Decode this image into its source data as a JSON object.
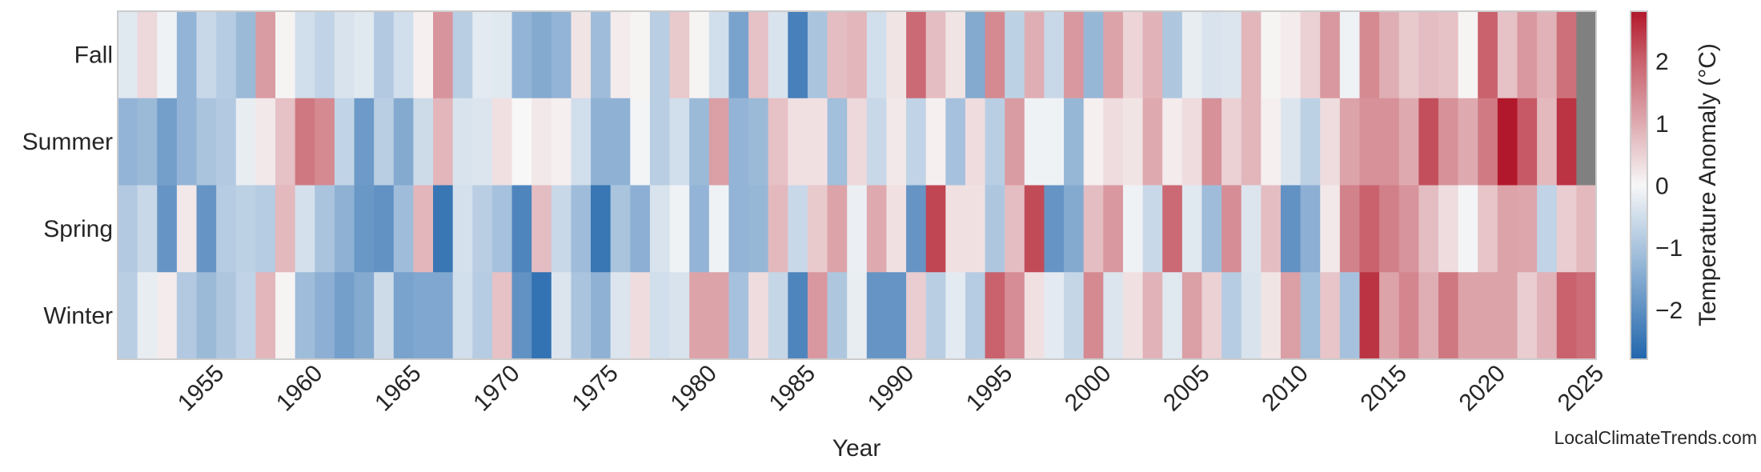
{
  "chart_data": {
    "type": "heatmap",
    "xlabel": "Year",
    "x": [
      1951,
      1952,
      1953,
      1954,
      1955,
      1956,
      1957,
      1958,
      1959,
      1960,
      1961,
      1962,
      1963,
      1964,
      1965,
      1966,
      1967,
      1968,
      1969,
      1970,
      1971,
      1972,
      1973,
      1974,
      1975,
      1976,
      1977,
      1978,
      1979,
      1980,
      1981,
      1982,
      1983,
      1984,
      1985,
      1986,
      1987,
      1988,
      1989,
      1990,
      1991,
      1992,
      1993,
      1994,
      1995,
      1996,
      1997,
      1998,
      1999,
      2000,
      2001,
      2002,
      2003,
      2004,
      2005,
      2006,
      2007,
      2008,
      2009,
      2010,
      2011,
      2012,
      2013,
      2014,
      2015,
      2016,
      2017,
      2018,
      2019,
      2020,
      2021,
      2022,
      2023,
      2024,
      2025
    ],
    "x_tick_labels": [
      "1955",
      "1960",
      "1965",
      "1970",
      "1975",
      "1980",
      "1985",
      "1990",
      "1995",
      "2000",
      "2005",
      "2010",
      "2015",
      "2020",
      "2025"
    ],
    "rows": [
      {
        "name": "Fall",
        "values": [
          -0.3,
          0.4,
          -0.1,
          -1.3,
          -0.6,
          -0.85,
          -1.2,
          1.2,
          0.05,
          -0.5,
          -0.7,
          -0.4,
          -0.3,
          -0.9,
          -0.5,
          0.1,
          1.3,
          -0.8,
          -0.25,
          -0.3,
          -1.3,
          -1.5,
          -1.3,
          0.25,
          -1.15,
          0.15,
          0.05,
          -0.8,
          0.6,
          0.05,
          -0.5,
          -1.65,
          0.7,
          -0.4,
          -2.3,
          -1.0,
          0.75,
          0.85,
          -0.5,
          0.25,
          1.9,
          0.75,
          0.25,
          -1.5,
          1.45,
          -0.75,
          0.95,
          -0.6,
          1.25,
          -1.25,
          1.1,
          0.45,
          0.9,
          -0.95,
          -0.2,
          -0.4,
          -0.35,
          0.85,
          0.05,
          0.15,
          0.5,
          1.25,
          -0.1,
          1.45,
          0.95,
          0.6,
          0.75,
          0.7,
          0.05,
          2.0,
          0.7,
          1.25,
          0.9,
          1.8,
          null
        ]
      },
      {
        "name": "Summer",
        "values": [
          -1.3,
          -1.2,
          -1.7,
          -1.3,
          -1.0,
          -0.9,
          -0.2,
          0.2,
          0.7,
          1.7,
          1.45,
          -0.7,
          -1.8,
          -0.8,
          -1.5,
          -0.55,
          0.85,
          -0.4,
          -0.35,
          0.3,
          0.0,
          0.2,
          0.1,
          -0.5,
          -1.35,
          -1.35,
          -0.05,
          -0.8,
          -0.5,
          -1.2,
          1.15,
          -1.3,
          -1.2,
          0.7,
          0.3,
          0.3,
          -1.1,
          0.4,
          -0.6,
          0.2,
          -0.7,
          0.1,
          -1.05,
          0.35,
          -0.8,
          1.2,
          -0.1,
          -0.1,
          -1.25,
          0.1,
          0.35,
          0.25,
          1.0,
          0.15,
          0.35,
          1.35,
          0.5,
          0.85,
          0.1,
          -0.35,
          -0.75,
          0.35,
          1.1,
          1.35,
          1.35,
          1.0,
          2.2,
          1.35,
          1.0,
          1.65,
          2.8,
          2.1,
          0.8,
          2.5,
          null
        ]
      },
      {
        "name": "Spring",
        "values": [
          -0.9,
          -0.6,
          -1.9,
          0.2,
          -1.9,
          -0.85,
          -0.75,
          -0.85,
          0.8,
          -0.45,
          -1.0,
          -1.35,
          -1.85,
          -1.95,
          -1.15,
          0.85,
          -2.5,
          -0.45,
          -0.8,
          -1.05,
          -2.2,
          0.75,
          -0.6,
          -1.15,
          -2.5,
          -1.0,
          -1.4,
          -0.4,
          -0.1,
          -1.3,
          -0.1,
          -1.3,
          -1.25,
          0.8,
          -0.6,
          0.6,
          1.1,
          -0.15,
          1.0,
          0.3,
          -1.9,
          2.3,
          0.3,
          0.3,
          -0.95,
          0.75,
          2.25,
          -1.9,
          -1.5,
          0.75,
          1.25,
          -0.1,
          -0.6,
          1.9,
          -0.3,
          -1.15,
          1.4,
          -0.35,
          0.75,
          -1.95,
          -1.4,
          0.2,
          1.55,
          2.0,
          1.6,
          1.3,
          0.75,
          0.35,
          -0.05,
          0.65,
          1.1,
          1.05,
          -0.7,
          0.55,
          0.8
        ]
      },
      {
        "name": "Winter",
        "values": [
          -0.8,
          -0.2,
          0.15,
          -0.9,
          -1.2,
          -0.95,
          -0.7,
          0.85,
          0.05,
          -1.15,
          -1.4,
          -1.7,
          -1.5,
          -0.55,
          -1.65,
          -1.55,
          -1.55,
          -0.5,
          -0.85,
          0.7,
          -1.95,
          -2.55,
          -0.35,
          -1.0,
          -1.35,
          -0.35,
          0.35,
          -0.5,
          -0.4,
          1.1,
          1.1,
          -1.05,
          0.35,
          -0.65,
          -2.2,
          1.25,
          -0.95,
          -0.2,
          -1.9,
          -1.9,
          0.55,
          -0.8,
          -0.25,
          -0.85,
          2.0,
          1.4,
          0.3,
          -0.25,
          -0.65,
          1.45,
          -0.35,
          0.3,
          0.9,
          -0.3,
          1.15,
          0.5,
          -0.85,
          -0.4,
          0.25,
          1.15,
          -1.1,
          0.65,
          -1.05,
          2.5,
          1.1,
          1.5,
          0.95,
          1.7,
          1.1,
          1.1,
          1.1,
          0.55,
          0.9,
          2.0,
          1.85
        ]
      }
    ],
    "colorbar": {
      "label": "Temperature Anomaly (°C)",
      "range": [
        -2.8,
        2.8
      ],
      "ticks": [
        2,
        1,
        0,
        -1,
        -2
      ],
      "tick_labels": [
        "2",
        "1",
        "0",
        "−1",
        "−2"
      ],
      "colormap": [
        "#2166ac",
        "#aac4de",
        "#f7f7f7",
        "#deaab0",
        "#c9626d",
        "#b2182b"
      ],
      "missing_color": "#808080"
    },
    "grid": false
  },
  "watermark": "LocalClimateTrends.com"
}
